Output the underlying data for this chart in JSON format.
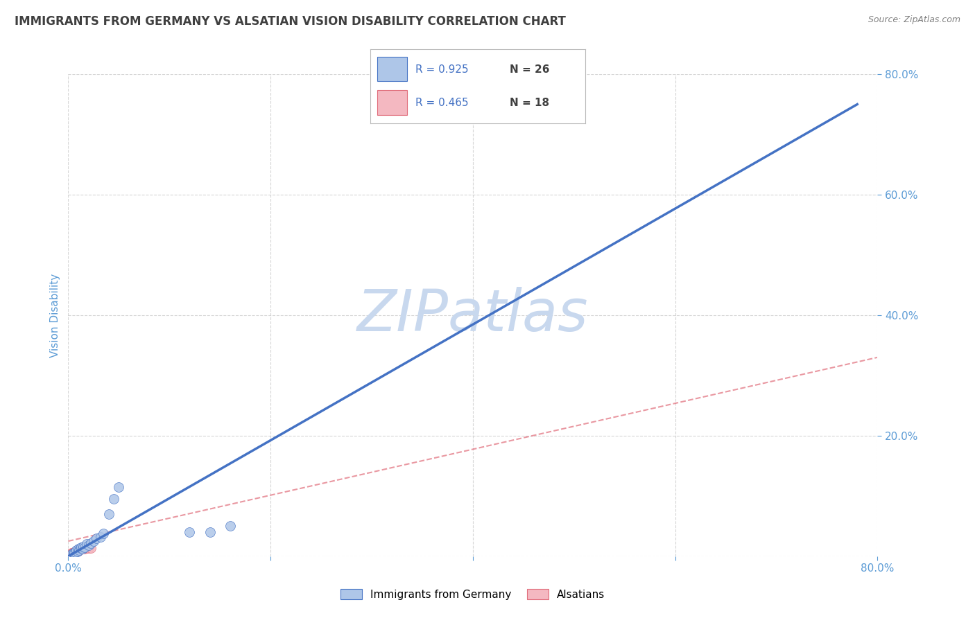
{
  "title": "IMMIGRANTS FROM GERMANY VS ALSATIAN VISION DISABILITY CORRELATION CHART",
  "source": "Source: ZipAtlas.com",
  "ylabel": "Vision Disability",
  "xlim": [
    0.0,
    0.8
  ],
  "ylim": [
    0.0,
    0.8
  ],
  "blue_scatter_x": [
    0.003,
    0.005,
    0.006,
    0.007,
    0.008,
    0.009,
    0.01,
    0.011,
    0.012,
    0.013,
    0.014,
    0.015,
    0.016,
    0.018,
    0.02,
    0.022,
    0.025,
    0.028,
    0.032,
    0.035,
    0.04,
    0.045,
    0.05,
    0.12,
    0.14,
    0.16
  ],
  "blue_scatter_y": [
    0.003,
    0.005,
    0.006,
    0.007,
    0.01,
    0.008,
    0.012,
    0.01,
    0.013,
    0.015,
    0.012,
    0.016,
    0.015,
    0.02,
    0.018,
    0.022,
    0.025,
    0.03,
    0.032,
    0.038,
    0.07,
    0.095,
    0.115,
    0.04,
    0.04,
    0.05
  ],
  "pink_scatter_x": [
    0.002,
    0.003,
    0.004,
    0.005,
    0.006,
    0.007,
    0.008,
    0.009,
    0.01,
    0.011,
    0.012,
    0.013,
    0.014,
    0.015,
    0.016,
    0.018,
    0.02,
    0.022
  ],
  "pink_scatter_y": [
    0.003,
    0.005,
    0.005,
    0.007,
    0.007,
    0.008,
    0.008,
    0.01,
    0.009,
    0.01,
    0.011,
    0.012,
    0.012,
    0.013,
    0.012,
    0.013,
    0.013,
    0.014
  ],
  "blue_line_x1": 0.0,
  "blue_line_y1": 0.0,
  "blue_line_x2": 0.78,
  "blue_line_y2": 0.75,
  "pink_line_x1": 0.0,
  "pink_line_y1": 0.025,
  "pink_line_x2": 0.8,
  "pink_line_y2": 0.33,
  "blue_R": 0.925,
  "blue_N": 26,
  "pink_R": 0.465,
  "pink_N": 18,
  "blue_scatter_color": "#AEC6E8",
  "blue_line_color": "#4472C4",
  "pink_scatter_color": "#F4B8C1",
  "pink_line_color": "#E06C7A",
  "title_color": "#404040",
  "source_color": "#808080",
  "axis_label_color": "#5B9BD5",
  "tick_label_color": "#5B9BD5",
  "watermark_text": "ZIPatlas",
  "watermark_color": "#C8D8EE",
  "background_color": "#FFFFFF",
  "grid_color": "#CCCCCC",
  "legend_R_color": "#4472C4",
  "legend_N_color": "#404040",
  "scatter_size": 100
}
